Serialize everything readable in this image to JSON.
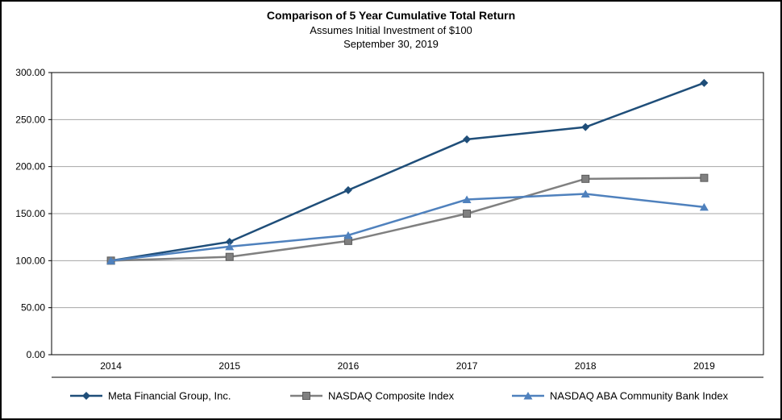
{
  "header": {
    "title": "Comparison of 5 Year Cumulative Total Return",
    "subtitle1": "Assumes Initial Investment of $100",
    "subtitle2": "September 30, 2019"
  },
  "chart_data": {
    "type": "line",
    "title": "Comparison of 5 Year Cumulative Total Return",
    "subtitle1": "Assumes Initial Investment of $100",
    "subtitle2": "September 30, 2019",
    "categories": [
      "2014",
      "2015",
      "2016",
      "2017",
      "2018",
      "2019"
    ],
    "series": [
      {
        "name": "Meta Financial Group, Inc.",
        "marker": "diamond",
        "color": "#1F4E79",
        "values": [
          100,
          120,
          175,
          229,
          242,
          289
        ]
      },
      {
        "name": "NASDAQ Composite Index",
        "marker": "square",
        "color": "#808080",
        "values": [
          100,
          104,
          121,
          150,
          187,
          188
        ]
      },
      {
        "name": "NASDAQ ABA Community Bank Index",
        "marker": "triangle",
        "color": "#4F81BD",
        "values": [
          100,
          115,
          127,
          165,
          171,
          157
        ]
      }
    ],
    "ylim": [
      0,
      300
    ],
    "ytick_values": [
      0,
      50,
      100,
      150,
      200,
      250,
      300
    ],
    "ytick_labels": [
      "0.00",
      "50.00",
      "100.00",
      "150.00",
      "200.00",
      "250.00",
      "300.00"
    ],
    "xlabel": "",
    "ylabel": "",
    "grid": true,
    "legend_position": "bottom",
    "colors": {
      "gridline": "#A6A6A6",
      "plot_border": "#000000",
      "axis_line": "#000000",
      "text": "#000000"
    }
  }
}
